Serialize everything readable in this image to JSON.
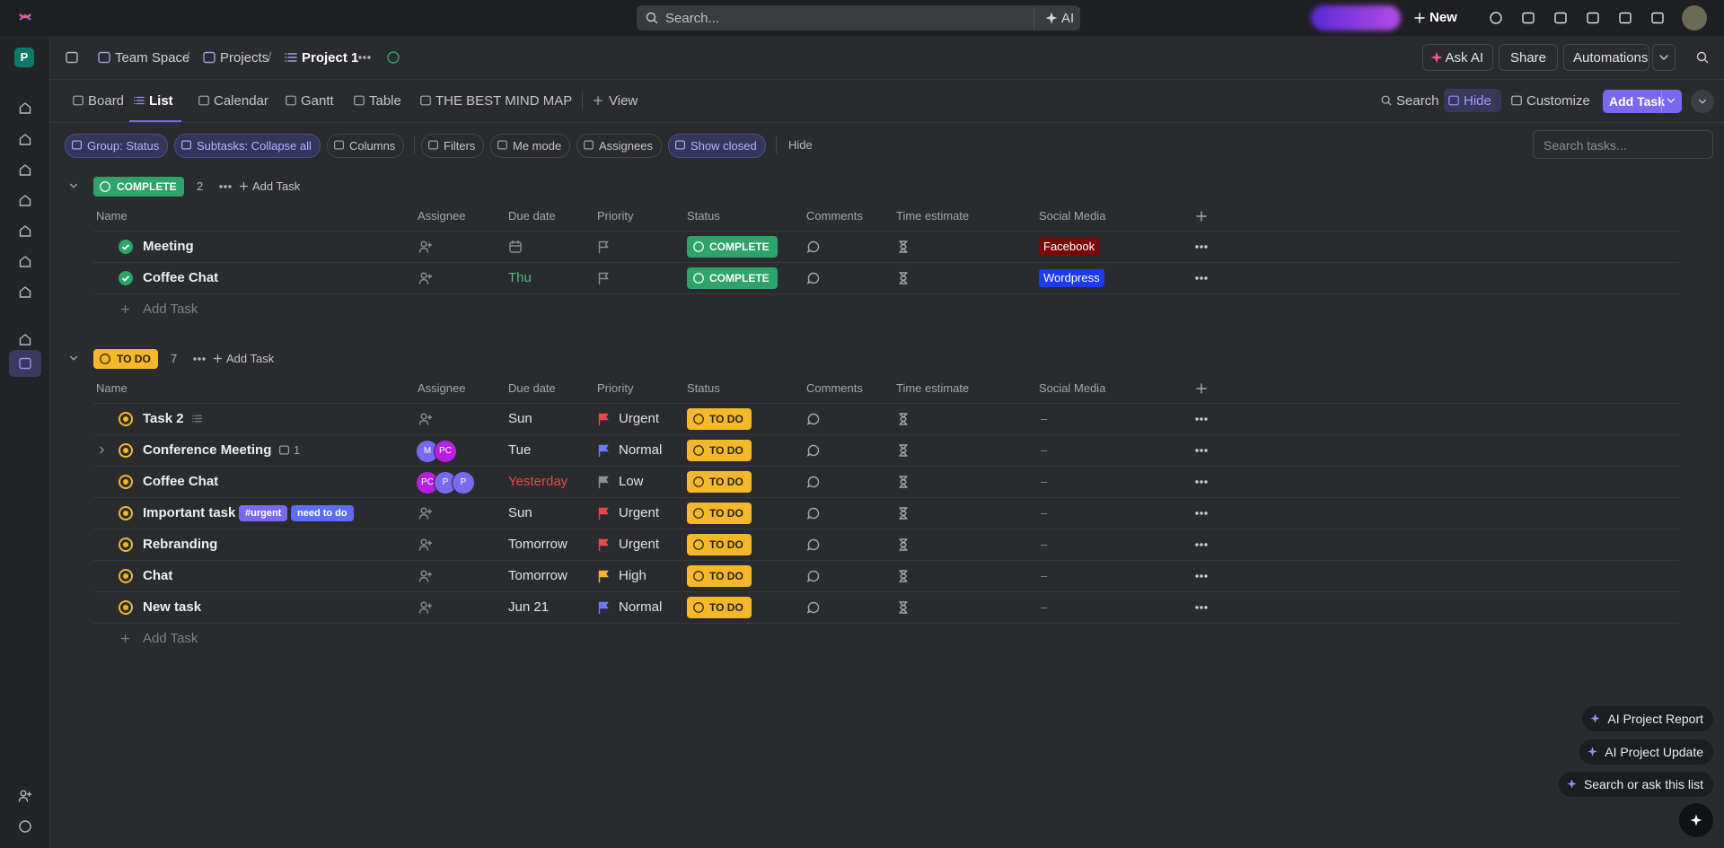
{
  "topbar": {
    "search": "Search...",
    "ai": "AI",
    "new": "New"
  },
  "workspace": "P",
  "breadcrumb": [
    "Team Space",
    "Projects",
    "Project 1"
  ],
  "header_actions": {
    "ask_ai": "Ask AI",
    "share": "Share",
    "automations": "Automations"
  },
  "views": [
    "Board",
    "List",
    "Calendar",
    "Gantt",
    "Table",
    "THE BEST MIND MAP"
  ],
  "active_view": 1,
  "add_view": "View",
  "view_tools": [
    "Search",
    "Hide",
    "Customize"
  ],
  "add_task_button": "Add Task",
  "filters": [
    {
      "label": "Group: Status",
      "active": true
    },
    {
      "label": "Subtasks: Collapse all",
      "active": true
    },
    {
      "label": "Columns",
      "active": false
    },
    {
      "label": "Filters",
      "active": false
    },
    {
      "label": "Me mode",
      "active": false
    },
    {
      "label": "Assignees",
      "active": false
    },
    {
      "label": "Show closed",
      "active": true
    }
  ],
  "hide": "Hide",
  "search_tasks": "Search tasks...",
  "columns": [
    "Name",
    "Assignee",
    "Due date",
    "Priority",
    "Status",
    "Comments",
    "Time estimate",
    "Social Media"
  ],
  "groups": [
    {
      "status": "COMPLETE",
      "color": "#2ea36a",
      "text_color": "#ffffff",
      "done": true,
      "count": 2,
      "add_task": "Add Task",
      "footer_add": "Add Task",
      "rows": [
        {
          "name": "Meeting",
          "social": "Facebook",
          "social_color": "#7a0a0a"
        },
        {
          "name": "Coffee Chat",
          "due": "Thu",
          "due_color": "#57b882",
          "social": "Wordpress",
          "social_color": "#1b3bf0"
        }
      ]
    },
    {
      "status": "TO DO",
      "color": "#f5b82a",
      "text_color": "#2a2206",
      "done": false,
      "count": 7,
      "add_task": "Add Task",
      "footer_add": "Add Task",
      "rows": [
        {
          "name": "Task 2",
          "due": "Sun",
          "priority": "Urgent",
          "flag_color": "#e5484d",
          "social": "–"
        },
        {
          "name": "Conference Meeting",
          "subtasks": 1,
          "assignees": [
            {
              "initials": "M",
              "color": "#7b68ee"
            },
            {
              "initials": "PC",
              "color": "#b620e0"
            }
          ],
          "due": "Tue",
          "priority": "Normal",
          "flag_color": "#6b7cff",
          "social": "–"
        },
        {
          "name": "Coffee Chat",
          "assignees": [
            {
              "initials": "PC",
              "color": "#b620e0"
            },
            {
              "initials": "P",
              "color": "#7b68ee"
            },
            {
              "initials": "P",
              "color": "#7b68ee"
            }
          ],
          "due": "Yesterday",
          "due_color": "#e5484d",
          "priority": "Low",
          "flag_color": "#87909e",
          "social": "–"
        },
        {
          "name": "Important task",
          "tags": [
            {
              "label": "#urgent",
              "color": "#7b68ee"
            },
            {
              "label": "need to do",
              "color": "#5d6cf0"
            }
          ],
          "due": "Sun",
          "priority": "Urgent",
          "flag_color": "#e5484d",
          "social": "–"
        },
        {
          "name": "Rebranding",
          "due": "Tomorrow",
          "priority": "Urgent",
          "flag_color": "#e5484d",
          "social": "–"
        },
        {
          "name": "Chat",
          "due": "Tomorrow",
          "priority": "High",
          "flag_color": "#f5b82a",
          "social": "–"
        },
        {
          "name": "New task",
          "due": "Jun 21",
          "priority": "Normal",
          "flag_color": "#6b7cff",
          "social": "–"
        }
      ]
    }
  ],
  "assistant": [
    "AI Project Report",
    "AI Project Update",
    "Search or ask this list"
  ]
}
